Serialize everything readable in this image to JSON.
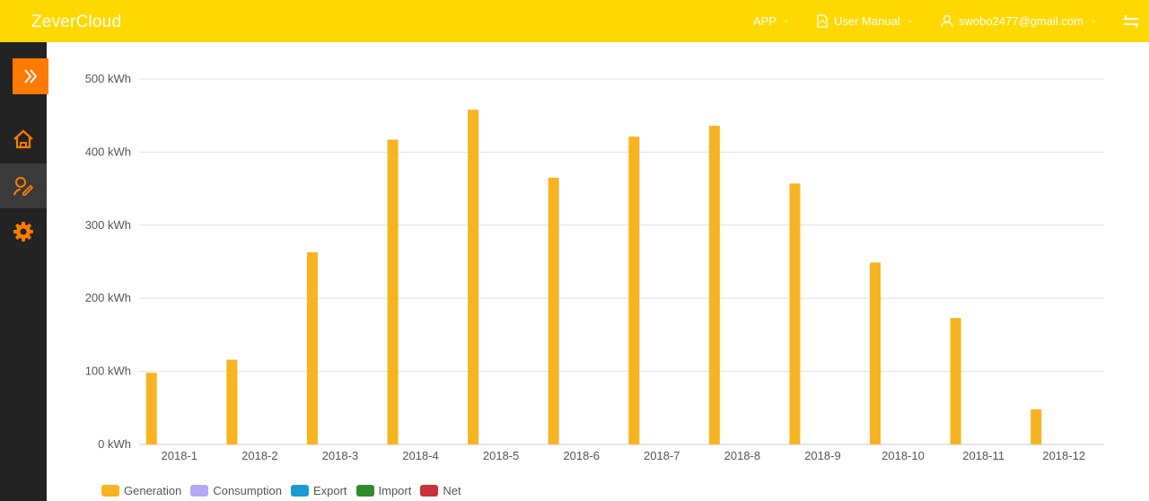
{
  "app": {
    "title": "ZeverCloud"
  },
  "header": {
    "app_label": "APP",
    "manual_label": "User Manual",
    "user_email": "swobo2477@gmail.com"
  },
  "colors": {
    "topbar": "#ffd800",
    "sidebar": "#232323",
    "accent": "#ff7a00",
    "generation": "#f8b320",
    "consumption": "#b4a7f5",
    "export": "#1c9ad6",
    "import": "#2e8b2e",
    "net": "#c9303a"
  },
  "sidebar": {
    "items": [
      {
        "icon": "expand-icon"
      },
      {
        "icon": "home-icon"
      },
      {
        "icon": "user-edit-icon",
        "active": true
      },
      {
        "icon": "gear-icon"
      }
    ]
  },
  "chart_data": {
    "type": "bar",
    "categories": [
      "2018-1",
      "2018-2",
      "2018-3",
      "2018-4",
      "2018-5",
      "2018-6",
      "2018-7",
      "2018-8",
      "2018-9",
      "2018-10",
      "2018-11",
      "2018-12"
    ],
    "series": [
      {
        "name": "Generation",
        "color": "#f8b320",
        "values": [
          98,
          116,
          263,
          417,
          458,
          365,
          421,
          436,
          357,
          249,
          173,
          48
        ]
      },
      {
        "name": "Consumption",
        "color": "#b4a7f5",
        "values": [
          0,
          0,
          0,
          0,
          0,
          0,
          0,
          0,
          0,
          0,
          0,
          0
        ]
      },
      {
        "name": "Export",
        "color": "#1c9ad6",
        "values": [
          0,
          0,
          0,
          0,
          0,
          0,
          0,
          0,
          0,
          0,
          0,
          0
        ]
      },
      {
        "name": "Import",
        "color": "#2e8b2e",
        "values": [
          0,
          0,
          0,
          0,
          0,
          0,
          0,
          0,
          0,
          0,
          0,
          0
        ]
      },
      {
        "name": "Net",
        "color": "#c9303a",
        "values": [
          0,
          0,
          0,
          0,
          0,
          0,
          0,
          0,
          0,
          0,
          0,
          0
        ]
      }
    ],
    "y_ticks": [
      "0 kWh",
      "100 kWh",
      "200 kWh",
      "300 kWh",
      "400 kWh",
      "500 kWh"
    ],
    "ylim": [
      0,
      500
    ],
    "grid": true,
    "legend_position": "bottom-left"
  }
}
